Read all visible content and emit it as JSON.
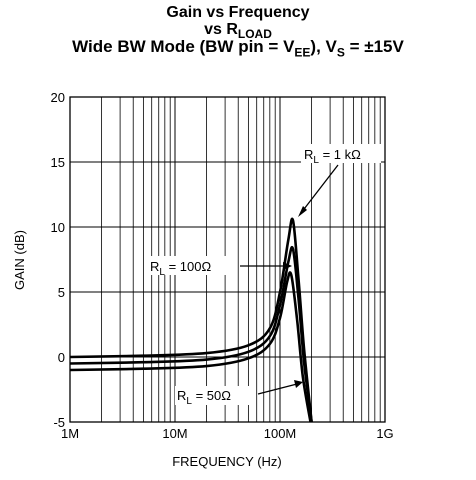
{
  "chart_data": {
    "type": "line",
    "title_line1": "Gain vs Frequency",
    "title_line2_main": "vs R",
    "title_line2_sub": "LOAD",
    "title_line3_a": "Wide BW Mode (BW pin = V",
    "title_line3_sub1": "EE",
    "title_line3_b": "), V",
    "title_line3_sub2": "S",
    "title_line3_c": " = ±15V",
    "xlabel": "FREQUENCY (Hz)",
    "ylabel": "GAIN (dB)",
    "x_scale": "log",
    "xlim": [
      1000000,
      1000000000
    ],
    "ylim": [
      -5,
      20
    ],
    "grid": true,
    "x_ticks": [
      {
        "value": 1000000,
        "label": "1M"
      },
      {
        "value": 10000000,
        "label": "10M"
      },
      {
        "value": 100000000,
        "label": "100M"
      },
      {
        "value": 1000000000,
        "label": "1G"
      }
    ],
    "y_ticks": [
      {
        "value": -5,
        "label": "-5"
      },
      {
        "value": 0,
        "label": "0"
      },
      {
        "value": 5,
        "label": "5"
      },
      {
        "value": 10,
        "label": "10"
      },
      {
        "value": 15,
        "label": "15"
      },
      {
        "value": 20,
        "label": "20"
      }
    ],
    "series": [
      {
        "x": [
          1000000,
          5000000,
          20000000,
          50000000,
          80000000,
          100000000,
          120000000,
          133000000,
          150000000,
          170000000,
          200000000
        ],
        "y": [
          0.0,
          0.1,
          0.3,
          0.9,
          2.2,
          5.0,
          9.0,
          10.5,
          6.0,
          0.5,
          -5.0
        ]
      },
      {
        "x": [
          1000000,
          5000000,
          20000000,
          50000000,
          80000000,
          100000000,
          120000000,
          133000000,
          150000000,
          170000000,
          200000000
        ],
        "y": [
          -0.5,
          -0.4,
          -0.2,
          0.4,
          1.6,
          4.0,
          7.3,
          8.3,
          4.5,
          -0.5,
          -5.0
        ]
      },
      {
        "x": [
          1000000,
          5000000,
          20000000,
          50000000,
          80000000,
          100000000,
          117000000,
          128000000,
          145000000,
          165000000,
          195000000
        ],
        "y": [
          -1.0,
          -0.9,
          -0.7,
          -0.1,
          1.0,
          3.0,
          5.8,
          6.3,
          3.0,
          -1.5,
          -5.0
        ]
      }
    ],
    "annotations": [
      {
        "main": "R",
        "sub": "L",
        "rest": " = 1 kΩ"
      },
      {
        "main": "R",
        "sub": "L",
        "rest": " = 100Ω"
      },
      {
        "main": "R",
        "sub": "L",
        "rest": " = 50Ω"
      }
    ]
  }
}
